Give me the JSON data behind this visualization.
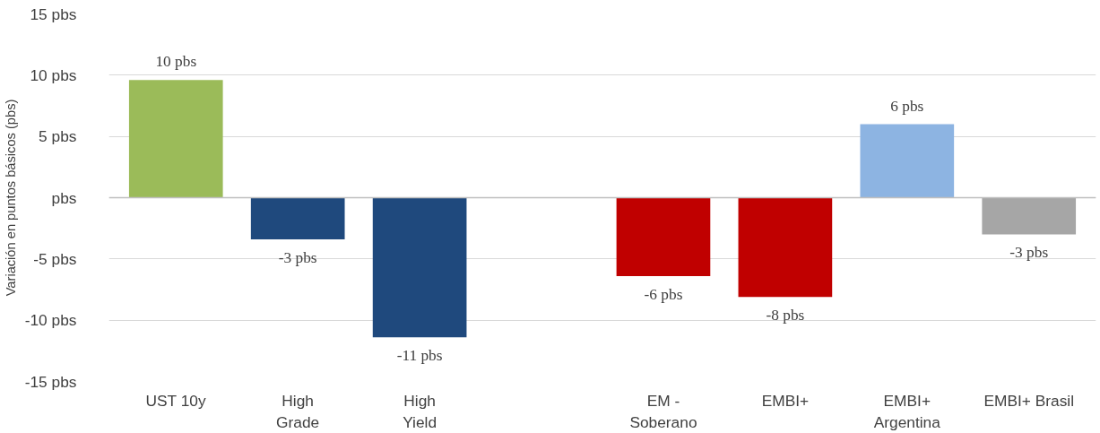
{
  "chart_data": {
    "type": "bar",
    "ylabel": "Variación en puntos básicos (pbs)",
    "categories": [
      "UST 10y",
      "High\nGrade",
      "High\nYield",
      null,
      "EM -\nSoberano",
      "EMBI+",
      "EMBI+\nArgentina",
      "EMBI+ Brasil"
    ],
    "values": [
      9.6,
      -3.4,
      -11.4,
      null,
      -6.4,
      -8.1,
      6.0,
      -3.0
    ],
    "colors": [
      "#9bbb59",
      "#1f497d",
      "#1f497d",
      "#1f497d",
      "#c00000",
      "#c00000",
      "#8db4e2",
      "#a6a6a6"
    ],
    "value_labels": [
      "10 pbs",
      "-3 pbs",
      "-11 pbs",
      null,
      "-6 pbs",
      "-8 pbs",
      "6 pbs",
      "-3 pbs"
    ],
    "ylim": [
      -15,
      15
    ],
    "yticks": [
      {
        "value": -15,
        "label": "-15 pbs"
      },
      {
        "value": -10,
        "label": "-10 pbs"
      },
      {
        "value": -5,
        "label": "-5 pbs"
      },
      {
        "value": 0,
        "label": "pbs"
      },
      {
        "value": 5,
        "label": "5 pbs"
      },
      {
        "value": 10,
        "label": "10 pbs"
      },
      {
        "value": 15,
        "label": "15 pbs"
      }
    ],
    "grid": "y"
  }
}
